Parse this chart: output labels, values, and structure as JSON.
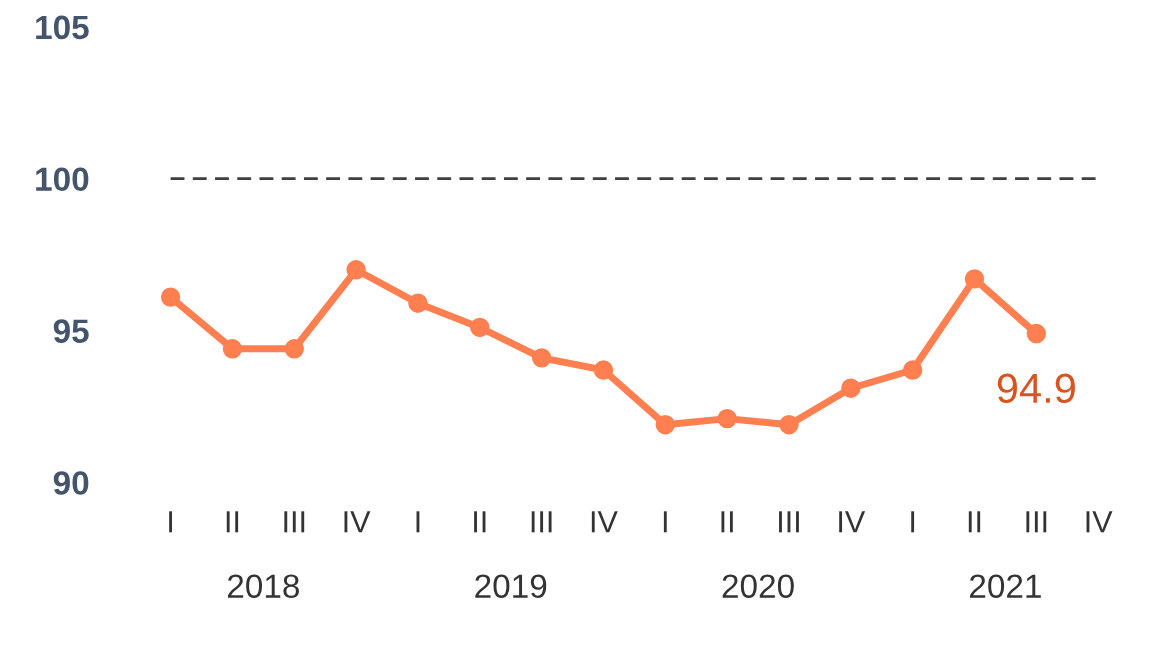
{
  "chart_data": {
    "type": "line",
    "categories": [
      "I",
      "II",
      "III",
      "IV",
      "I",
      "II",
      "III",
      "IV",
      "I",
      "II",
      "III",
      "IV",
      "I",
      "II",
      "III",
      "IV"
    ],
    "series": [
      {
        "color": "#ff7f50",
        "values": [
          96.1,
          94.4,
          94.4,
          97.0,
          95.9,
          95.1,
          94.1,
          93.7,
          91.9,
          92.1,
          91.9,
          93.1,
          93.7,
          96.7,
          94.9,
          null
        ],
        "value_labels": [
          null,
          null,
          null,
          null,
          null,
          null,
          null,
          null,
          null,
          null,
          null,
          null,
          null,
          null,
          "94.9",
          null
        ]
      }
    ],
    "annotations": [
      "2018",
      "2019",
      "2020",
      "2021"
    ],
    "ylim": [
      90,
      105
    ],
    "yticks": [
      90,
      95,
      100,
      105
    ],
    "ref_lines": [
      {
        "axis": "y",
        "value": 100,
        "color": "#404040",
        "line_style": "dashed"
      }
    ],
    "marker": "circle",
    "line_style": "solid",
    "grid": false,
    "legend": false
  }
}
